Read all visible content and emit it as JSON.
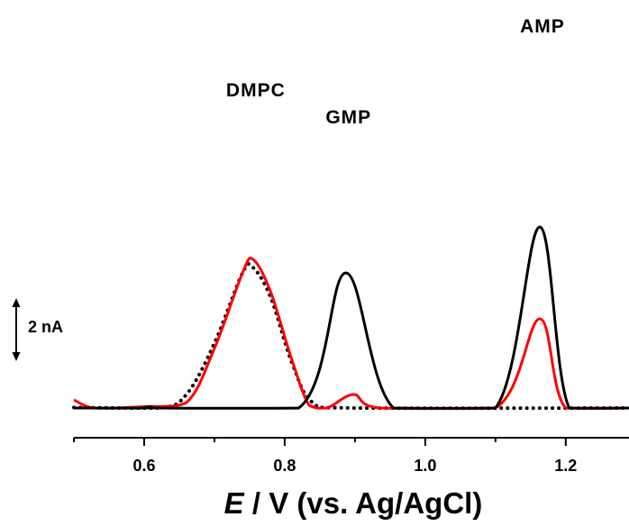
{
  "chart_data": {
    "type": "line",
    "xlabel_var": "E",
    "xlabel_rest": " / V (vs. Ag/AgCl)",
    "xlim": [
      0.5,
      1.29
    ],
    "x_ticks": [
      0.6,
      0.8,
      1.0,
      1.2
    ],
    "x_tick_labels": [
      "0.6",
      "0.8",
      "1.0",
      "1.2"
    ],
    "y_axis_visible": false,
    "y_units": "nA",
    "scale_bar": {
      "label": "2 nA",
      "value": 2
    },
    "peak_labels": [
      {
        "text": "DMPC",
        "x": 0.755
      },
      {
        "text": "GMP",
        "x": 0.887
      },
      {
        "text": "AMP",
        "x": 1.163
      }
    ],
    "series": [
      {
        "color": "#000000",
        "style": "dotted",
        "points": [
          [
            0.5,
            0.02
          ],
          [
            0.62,
            0.0
          ],
          [
            0.66,
            0.5
          ],
          [
            0.7,
            2.4
          ],
          [
            0.74,
            5.0
          ],
          [
            0.755,
            5.2
          ],
          [
            0.78,
            4.1
          ],
          [
            0.81,
            1.7
          ],
          [
            0.84,
            0.2
          ],
          [
            0.9,
            0.0
          ],
          [
            1.29,
            0.0
          ]
        ]
      },
      {
        "color": "#ff0000",
        "style": "solid",
        "points": [
          [
            0.5,
            0.3
          ],
          [
            0.53,
            0.0
          ],
          [
            0.6,
            0.05
          ],
          [
            0.66,
            0.2
          ],
          [
            0.7,
            2.2
          ],
          [
            0.74,
            5.0
          ],
          [
            0.755,
            5.5
          ],
          [
            0.78,
            4.3
          ],
          [
            0.81,
            1.8
          ],
          [
            0.835,
            0.1
          ],
          [
            0.86,
            0.0
          ],
          [
            0.898,
            0.5
          ],
          [
            0.935,
            0.0
          ],
          [
            1.1,
            0.0
          ],
          [
            1.163,
            3.3
          ],
          [
            1.2,
            0.0
          ],
          [
            1.29,
            0.0
          ]
        ]
      },
      {
        "color": "#000000",
        "style": "solid",
        "points": [
          [
            0.5,
            0.0
          ],
          [
            0.6,
            0.0
          ],
          [
            0.61,
            0.05
          ],
          [
            0.62,
            0.0
          ],
          [
            0.82,
            0.0
          ],
          [
            0.887,
            5.0
          ],
          [
            0.955,
            0.0
          ],
          [
            1.1,
            0.0
          ],
          [
            1.163,
            6.7
          ],
          [
            1.205,
            0.0
          ],
          [
            1.29,
            0.0
          ]
        ]
      }
    ]
  }
}
